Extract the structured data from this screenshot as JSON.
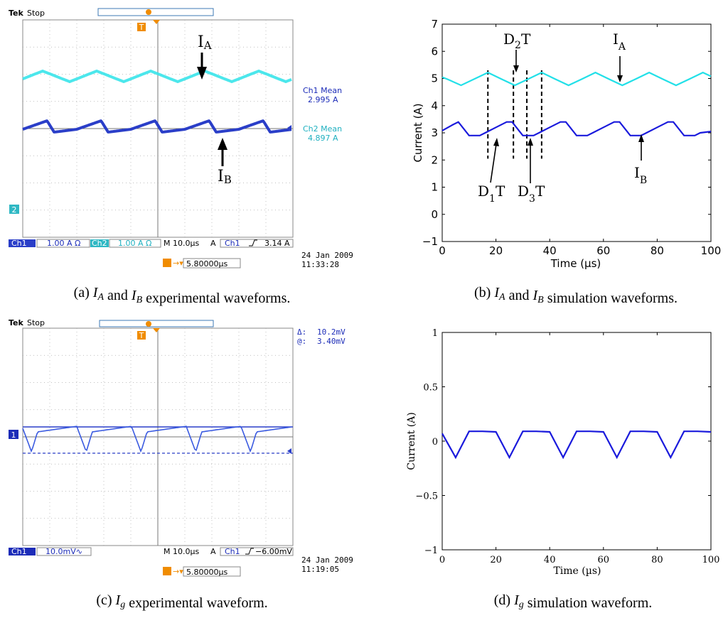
{
  "captions": {
    "a": {
      "prefix": "(a)",
      "text": "I_A and I_B experimental waveforms."
    },
    "b": {
      "prefix": "(b)",
      "text": "I_A and I_B simulation waveforms."
    },
    "c": {
      "prefix": "(c)",
      "text": "I_g experimental waveform."
    },
    "d": {
      "prefix": "(d)",
      "text": "I_g simulation waveform."
    }
  },
  "scope_a": {
    "brand": "Tek",
    "state": "Stop",
    "ch1_mean_label": "Ch1 Mean",
    "ch1_mean_value": "2.995 A",
    "ch2_mean_label": "Ch2 Mean",
    "ch2_mean_value": "4.897 A",
    "ch1_label": "Ch1",
    "ch1_scale": "1.00 A Ω",
    "ch2_label": "Ch2",
    "ch2_scale": "1.00 A Ω",
    "timebase": "M 10.0µs",
    "trig_mode": "A",
    "trig_ch": "Ch1",
    "trig_level": "3.14 A",
    "date": "24 Jan  2009",
    "time": "11:33:28",
    "trig_pos": "5.80000µs",
    "label_ia": "I",
    "label_ia_sub": "A",
    "label_ib": "I",
    "label_ib_sub": "B",
    "ch2_marker": "2",
    "trigger_marker": "T"
  },
  "scope_c": {
    "brand": "Tek",
    "state": "Stop",
    "delta_label": "Δ:",
    "delta_value": "10.2mV",
    "at_label": "@:",
    "at_value": "3.40mV",
    "ch1_label": "Ch1",
    "ch1_scale": "10.0mV∿",
    "timebase": "M 10.0µs",
    "trig_mode": "A",
    "trig_ch": "Ch1",
    "trig_level": "−6.00mV",
    "date": "24 Jan  2009",
    "time": "11:19:05",
    "trig_pos": "5.80000µs",
    "ch1_marker": "1",
    "trigger_marker": "T"
  },
  "chart_data": [
    {
      "id": "b",
      "type": "line",
      "title": "",
      "xlabel": "Time (µs)",
      "ylabel": "Current (A)",
      "xlim": [
        0,
        100
      ],
      "ylim": [
        -1,
        7
      ],
      "xticks": [
        0,
        20,
        40,
        60,
        80,
        100
      ],
      "yticks": [
        -1,
        0,
        1,
        2,
        3,
        4,
        5,
        6,
        7
      ],
      "series": [
        {
          "name": "I_A",
          "color": "#22e0e8",
          "x": [
            0,
            2,
            7,
            17,
            22,
            27,
            32,
            37,
            42,
            47,
            52,
            57,
            62,
            67,
            72,
            77,
            82,
            87,
            92,
            97,
            100
          ],
          "y": [
            5.05,
            4.97,
            4.75,
            5.22,
            4.98,
            4.75,
            4.98,
            5.22,
            4.98,
            4.75,
            4.98,
            5.22,
            4.98,
            4.75,
            4.98,
            5.22,
            4.98,
            4.75,
            4.98,
            5.22,
            5.08
          ]
        },
        {
          "name": "I_B",
          "color": "#1a1adc",
          "x": [
            0,
            4,
            6,
            10,
            12,
            14,
            16,
            20,
            24,
            26,
            30,
            32,
            34,
            36,
            40,
            44,
            46,
            50,
            52,
            54,
            56,
            60,
            64,
            66,
            70,
            72,
            74,
            76,
            80,
            84,
            86,
            90,
            92,
            94,
            96,
            100
          ],
          "y": [
            3.08,
            3.3,
            3.4,
            2.9,
            2.9,
            2.9,
            3.0,
            3.2,
            3.4,
            3.4,
            2.9,
            2.9,
            2.9,
            3.0,
            3.2,
            3.4,
            3.4,
            2.9,
            2.9,
            2.9,
            3.0,
            3.2,
            3.4,
            3.4,
            2.9,
            2.9,
            2.9,
            3.0,
            3.2,
            3.4,
            3.4,
            2.9,
            2.9,
            2.9,
            3.0,
            3.05
          ]
        }
      ],
      "dashed_markers_x": [
        17,
        26.5,
        31.5,
        37
      ],
      "annotations": [
        {
          "text": "D",
          "sub": "2",
          "tail": "T"
        },
        {
          "text": "I",
          "sub": "A",
          "tail": ""
        },
        {
          "text": "D",
          "sub": "1",
          "tail": "T"
        },
        {
          "text": "D",
          "sub": "3",
          "tail": "T"
        },
        {
          "text": "I",
          "sub": "B",
          "tail": ""
        }
      ]
    },
    {
      "id": "d",
      "type": "line",
      "title": "",
      "xlabel": "Time (µs)",
      "ylabel": "Current (A)",
      "xlim": [
        0,
        100
      ],
      "ylim": [
        -1,
        1
      ],
      "xticks": [
        0,
        20,
        40,
        60,
        80,
        100
      ],
      "yticks": [
        -1,
        -0.5,
        0,
        0.5,
        1
      ],
      "series": [
        {
          "name": "I_g",
          "color": "#1a1adc",
          "x": [
            0,
            5,
            10,
            15,
            20,
            25,
            30,
            35,
            40,
            45,
            50,
            55,
            60,
            65,
            70,
            75,
            80,
            85,
            90,
            95,
            100
          ],
          "y": [
            0.07,
            -0.15,
            0.09,
            0.09,
            0.085,
            -0.15,
            0.09,
            0.09,
            0.085,
            -0.15,
            0.09,
            0.09,
            0.085,
            -0.15,
            0.09,
            0.09,
            0.085,
            -0.15,
            0.09,
            0.09,
            0.085
          ]
        }
      ]
    }
  ]
}
